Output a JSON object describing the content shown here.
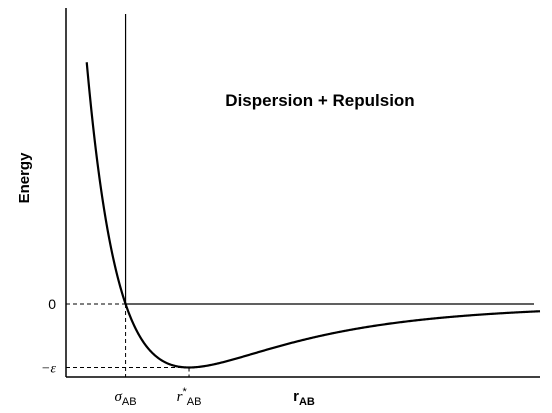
{
  "chart_data": {
    "type": "line",
    "title": "Dispersion + Repulsion",
    "ylabel": "Energy",
    "xlabel": {
      "main": "r",
      "sub": "AB"
    },
    "y_ticks": [
      {
        "value": 0,
        "label": "0"
      },
      {
        "value": -1,
        "label": "−ε"
      }
    ],
    "x_markers": [
      {
        "base": "σ",
        "sup": "",
        "sub": "AB",
        "x": 1.0
      },
      {
        "base": "r",
        "sup": "*",
        "sub": "AB",
        "x": 1.1225
      }
    ],
    "xlim": [
      0.885,
      1.8
    ],
    "ylim": [
      -1.15,
      4.6
    ],
    "curve": "Lennard-Jones",
    "grid": false,
    "legend": "none"
  },
  "colors": {
    "line": "#000000",
    "background": "#ffffff"
  }
}
